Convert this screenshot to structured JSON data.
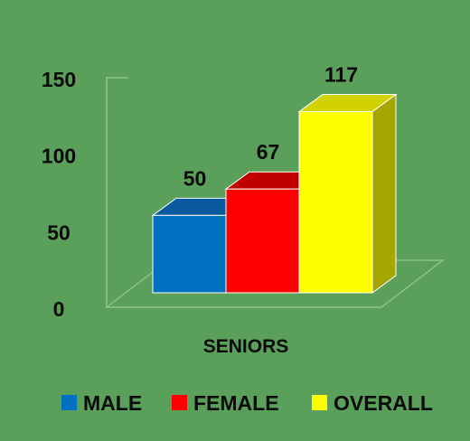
{
  "chart_data": {
    "type": "bar",
    "categories": [
      "SENIORS"
    ],
    "series": [
      {
        "name": "MALE",
        "values": [
          50
        ],
        "color": "#0070c0",
        "top_color": "#0a5aa0",
        "side_color": "#0a4f8c"
      },
      {
        "name": "FEMALE",
        "values": [
          67
        ],
        "color": "#ff0000",
        "top_color": "#c00000",
        "side_color": "#a30000"
      },
      {
        "name": "OVERALL",
        "values": [
          117
        ],
        "color": "#ffff00",
        "top_color": "#d2d200",
        "side_color": "#a6a600"
      }
    ],
    "ylim": [
      0,
      150
    ],
    "yticks": [
      "0",
      "50",
      "100",
      "150"
    ],
    "legend": "bottom",
    "grid": false,
    "style": "3d-column",
    "background": "#5aa05a"
  }
}
